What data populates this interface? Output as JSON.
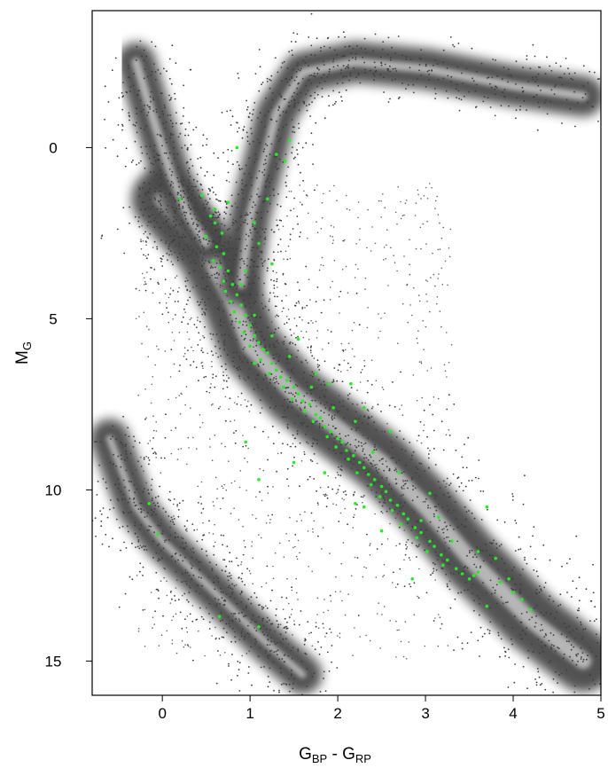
{
  "chart_data": {
    "type": "scatter",
    "title": "",
    "xlabel": {
      "main": "G",
      "sub1": "BP",
      "mid": " - G",
      "sub2": "RP"
    },
    "ylabel": {
      "main": "M",
      "sub": "G"
    },
    "xlim": [
      -0.8,
      5.0
    ],
    "ylim": [
      16.0,
      -4.0
    ],
    "y_inverted": true,
    "grid": false,
    "legend": "none",
    "xticks": [
      0,
      1,
      2,
      3,
      4,
      5
    ],
    "yticks": [
      0,
      5,
      10,
      15
    ],
    "colors": {
      "background_points": "#3c3c3c",
      "density_core": "#d8d8d8",
      "highlight_points": "#22ee22"
    },
    "series": [
      {
        "kind": "background-density",
        "note_regions": {
          "main_sequence": [
            [
              0.0,
              1.5
            ],
            [
              0.5,
              3.0
            ],
            [
              0.8,
              4.5
            ],
            [
              1.0,
              5.8
            ],
            [
              1.5,
              7.2
            ],
            [
              2.0,
              8.2
            ],
            [
              2.5,
              9.2
            ],
            [
              3.0,
              10.5
            ],
            [
              3.5,
              12.0
            ],
            [
              4.2,
              13.8
            ],
            [
              4.8,
              15.0
            ]
          ],
          "giant_branch": [
            [
              0.9,
              4.0
            ],
            [
              1.0,
              2.0
            ],
            [
              1.15,
              0.5
            ],
            [
              1.3,
              -1.0
            ],
            [
              1.6,
              -2.2
            ],
            [
              2.2,
              -2.5
            ],
            [
              3.0,
              -2.3
            ],
            [
              4.0,
              -1.8
            ],
            [
              4.8,
              -1.5
            ]
          ],
          "white_dwarfs": [
            [
              -0.6,
              8.5
            ],
            [
              -0.3,
              10.5
            ],
            [
              0.0,
              11.5
            ],
            [
              0.4,
              12.5
            ],
            [
              0.8,
              13.5
            ],
            [
              1.2,
              14.5
            ],
            [
              1.6,
              15.4
            ]
          ],
          "upper_blue": [
            [
              -0.3,
              -2.5
            ],
            [
              -0.1,
              -0.8
            ],
            [
              0.1,
              0.8
            ],
            [
              0.3,
              2.0
            ],
            [
              0.5,
              2.8
            ]
          ]
        }
      },
      {
        "kind": "highlight",
        "points": [
          [
            0.45,
            1.4
          ],
          [
            0.55,
            2.0
          ],
          [
            0.6,
            2.2
          ],
          [
            0.5,
            2.6
          ],
          [
            0.62,
            2.9
          ],
          [
            0.7,
            3.1
          ],
          [
            0.58,
            3.3
          ],
          [
            0.66,
            3.5
          ],
          [
            0.75,
            3.6
          ],
          [
            0.7,
            3.9
          ],
          [
            0.8,
            4.0
          ],
          [
            0.72,
            4.2
          ],
          [
            0.85,
            4.3
          ],
          [
            0.78,
            4.5
          ],
          [
            0.9,
            4.6
          ],
          [
            0.82,
            4.8
          ],
          [
            0.95,
            4.9
          ],
          [
            0.88,
            5.1
          ],
          [
            1.0,
            5.2
          ],
          [
            0.93,
            5.4
          ],
          [
            1.05,
            5.5
          ],
          [
            1.1,
            5.7
          ],
          [
            1.0,
            5.8
          ],
          [
            1.15,
            5.9
          ],
          [
            1.2,
            6.0
          ],
          [
            1.12,
            6.2
          ],
          [
            1.25,
            6.3
          ],
          [
            1.3,
            6.5
          ],
          [
            1.22,
            6.6
          ],
          [
            1.35,
            6.7
          ],
          [
            1.42,
            6.8
          ],
          [
            1.38,
            7.0
          ],
          [
            1.5,
            7.0
          ],
          [
            1.55,
            7.2
          ],
          [
            1.48,
            7.35
          ],
          [
            1.6,
            7.4
          ],
          [
            1.68,
            7.5
          ],
          [
            1.62,
            7.7
          ],
          [
            1.75,
            7.8
          ],
          [
            1.8,
            7.9
          ],
          [
            1.72,
            8.0
          ],
          [
            1.85,
            8.15
          ],
          [
            1.92,
            8.3
          ],
          [
            1.88,
            8.45
          ],
          [
            2.0,
            8.5
          ],
          [
            2.05,
            8.6
          ],
          [
            1.98,
            8.75
          ],
          [
            2.1,
            8.85
          ],
          [
            2.18,
            9.0
          ],
          [
            2.12,
            9.1
          ],
          [
            2.25,
            9.2
          ],
          [
            2.3,
            9.35
          ],
          [
            2.22,
            9.5
          ],
          [
            2.35,
            9.55
          ],
          [
            2.42,
            9.7
          ],
          [
            2.38,
            9.85
          ],
          [
            2.5,
            9.9
          ],
          [
            2.55,
            10.05
          ],
          [
            2.48,
            10.2
          ],
          [
            2.6,
            10.3
          ],
          [
            2.68,
            10.45
          ],
          [
            2.62,
            10.6
          ],
          [
            2.75,
            10.7
          ],
          [
            2.8,
            10.85
          ],
          [
            2.72,
            11.0
          ],
          [
            2.88,
            11.1
          ],
          [
            2.95,
            11.25
          ],
          [
            2.9,
            11.4
          ],
          [
            3.05,
            11.5
          ],
          [
            3.1,
            11.65
          ],
          [
            3.02,
            11.8
          ],
          [
            3.18,
            11.9
          ],
          [
            3.25,
            12.05
          ],
          [
            3.2,
            12.2
          ],
          [
            3.35,
            12.3
          ],
          [
            3.42,
            12.45
          ],
          [
            3.5,
            12.6
          ],
          [
            3.6,
            12.4
          ],
          [
            3.7,
            10.5
          ],
          [
            3.8,
            12.0
          ],
          [
            3.85,
            12.7
          ],
          [
            4.0,
            13.0
          ],
          [
            4.1,
            13.2
          ],
          [
            4.2,
            13.5
          ],
          [
            3.7,
            13.4
          ],
          [
            2.95,
            10.9
          ],
          [
            2.7,
            9.5
          ],
          [
            2.4,
            8.9
          ],
          [
            2.2,
            8.0
          ],
          [
            1.95,
            7.6
          ],
          [
            1.7,
            7.0
          ],
          [
            1.45,
            6.1
          ],
          [
            1.25,
            5.5
          ],
          [
            1.05,
            4.9
          ],
          [
            0.9,
            4.0
          ],
          [
            1.3,
            0.2
          ],
          [
            1.45,
            -0.2
          ],
          [
            1.4,
            0.4
          ],
          [
            1.2,
            1.5
          ],
          [
            1.05,
            2.2
          ],
          [
            1.1,
            2.8
          ],
          [
            1.25,
            3.4
          ],
          [
            0.85,
            0.0
          ],
          [
            0.75,
            1.6
          ],
          [
            0.6,
            1.8
          ],
          [
            0.2,
            1.5
          ],
          [
            1.05,
            6.3
          ],
          [
            2.15,
            6.9
          ],
          [
            1.75,
            6.6
          ],
          [
            2.6,
            8.3
          ],
          [
            3.05,
            10.1
          ],
          [
            2.2,
            10.4
          ],
          [
            -0.15,
            10.4
          ],
          [
            -0.05,
            11.3
          ],
          [
            0.65,
            13.7
          ],
          [
            1.1,
            14.0
          ],
          [
            1.1,
            9.7
          ],
          [
            0.95,
            8.6
          ],
          [
            1.5,
            9.2
          ],
          [
            2.3,
            10.5
          ],
          [
            2.85,
            12.6
          ],
          [
            3.3,
            11.5
          ],
          [
            3.55,
            12.5
          ],
          [
            2.5,
            11.2
          ],
          [
            1.85,
            9.5
          ],
          [
            3.95,
            12.6
          ],
          [
            3.6,
            11.8
          ],
          [
            3.15,
            10.8
          ],
          [
            1.55,
            5.6
          ],
          [
            1.9,
            6.9
          ],
          [
            2.3,
            7.6
          ],
          [
            0.95,
            3.6
          ],
          [
            0.68,
            2.5
          ]
        ]
      }
    ]
  }
}
